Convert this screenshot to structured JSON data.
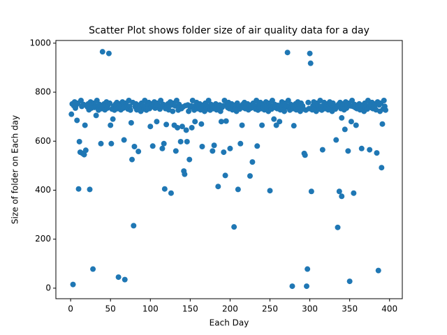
{
  "chart_data": {
    "type": "scatter",
    "title": "Scatter Plot shows folder size of air quality data for a day",
    "x_label": "Each Day",
    "y_label": "Size of folder on Each day",
    "color": "#1f77b4",
    "xlim": [
      -18.5,
      416
    ],
    "ylim": [
      -43,
      1011
    ],
    "xticks": [
      0,
      50,
      100,
      150,
      200,
      250,
      300,
      350,
      400
    ],
    "yticks": [
      0,
      200,
      400,
      600,
      800,
      1000
    ],
    "x": [
      1,
      2,
      3,
      4,
      5,
      6,
      7,
      8,
      9,
      10,
      11,
      12,
      13,
      14,
      15,
      16,
      17,
      18,
      19,
      20,
      21,
      22,
      23,
      24,
      25,
      26,
      27,
      28,
      29,
      30,
      31,
      32,
      33,
      34,
      35,
      36,
      37,
      38,
      39,
      40,
      41,
      42,
      43,
      44,
      45,
      46,
      47,
      48,
      49,
      50,
      51,
      52,
      53,
      54,
      55,
      56,
      57,
      58,
      59,
      60,
      61,
      62,
      63,
      64,
      65,
      66,
      67,
      68,
      69,
      70,
      71,
      72,
      73,
      74,
      75,
      76,
      77,
      78,
      79,
      80,
      81,
      82,
      83,
      84,
      85,
      86,
      87,
      88,
      89,
      90,
      91,
      92,
      93,
      94,
      95,
      96,
      97,
      98,
      99,
      100,
      101,
      102,
      103,
      104,
      105,
      106,
      107,
      108,
      109,
      110,
      111,
      112,
      113,
      114,
      115,
      116,
      117,
      118,
      119,
      120,
      121,
      122,
      123,
      124,
      125,
      126,
      127,
      128,
      129,
      130,
      131,
      132,
      133,
      134,
      135,
      136,
      137,
      138,
      139,
      140,
      141,
      142,
      143,
      144,
      145,
      146,
      147,
      148,
      149,
      150,
      151,
      152,
      153,
      154,
      155,
      156,
      157,
      158,
      159,
      160,
      161,
      162,
      163,
      164,
      165,
      166,
      167,
      168,
      169,
      170,
      171,
      172,
      173,
      174,
      175,
      176,
      177,
      178,
      179,
      180,
      181,
      182,
      183,
      184,
      185,
      186,
      187,
      188,
      189,
      190,
      191,
      192,
      193,
      194,
      195,
      196,
      197,
      198,
      199,
      200,
      201,
      202,
      203,
      204,
      205,
      206,
      207,
      208,
      209,
      210,
      211,
      212,
      213,
      214,
      215,
      216,
      217,
      218,
      219,
      220,
      221,
      222,
      223,
      224,
      225,
      226,
      227,
      228,
      229,
      230,
      231,
      232,
      233,
      234,
      235,
      236,
      237,
      238,
      239,
      240,
      241,
      242,
      243,
      244,
      245,
      246,
      247,
      248,
      249,
      250,
      251,
      252,
      253,
      254,
      255,
      256,
      257,
      258,
      259,
      260,
      261,
      262,
      263,
      264,
      265,
      266,
      267,
      268,
      269,
      270,
      271,
      272,
      273,
      274,
      275,
      276,
      277,
      278,
      279,
      280,
      281,
      282,
      283,
      284,
      285,
      286,
      287,
      288,
      289,
      290,
      291,
      292,
      293,
      294,
      295,
      296,
      297,
      298,
      299,
      300,
      301,
      302,
      303,
      304,
      305,
      306,
      307,
      308,
      309,
      310,
      311,
      312,
      313,
      314,
      315,
      316,
      317,
      318,
      319,
      320,
      321,
      322,
      323,
      324,
      325,
      326,
      327,
      328,
      329,
      330,
      331,
      332,
      333,
      334,
      335,
      336,
      337,
      338,
      339,
      340,
      341,
      342,
      343,
      344,
      345,
      346,
      347,
      348,
      349,
      350,
      351,
      352,
      353,
      354,
      355,
      356,
      357,
      358,
      359,
      360,
      361,
      362,
      363,
      364,
      365,
      366,
      367,
      368,
      369,
      370,
      371,
      372,
      373,
      374,
      375,
      376,
      377,
      378,
      379,
      380,
      381,
      382,
      383,
      384,
      385,
      386,
      387,
      388,
      389,
      390,
      391,
      392,
      393,
      394,
      395,
      340
    ],
    "values": [
      710,
      752,
      15,
      745,
      760,
      735,
      748,
      685,
      755,
      405,
      598,
      555,
      766,
      742,
      550,
      750,
      545,
      665,
      563,
      746,
      740,
      752,
      728,
      403,
      760,
      735,
      748,
      78,
      755,
      738,
      744,
      705,
      766,
      742,
      727,
      750,
      737,
      590,
      733,
      965,
      740,
      752,
      728,
      745,
      760,
      735,
      748,
      958,
      755,
      665,
      590,
      731,
      690,
      742,
      727,
      750,
      737,
      758,
      733,
      45,
      740,
      752,
      728,
      745,
      760,
      735,
      605,
      35,
      755,
      738,
      744,
      731,
      766,
      742,
      727,
      675,
      525,
      758,
      255,
      578,
      740,
      752,
      728,
      745,
      558,
      735,
      748,
      722,
      755,
      738,
      744,
      731,
      766,
      742,
      727,
      750,
      737,
      758,
      733,
      660,
      740,
      752,
      580,
      745,
      760,
      735,
      748,
      680,
      755,
      738,
      744,
      731,
      766,
      742,
      570,
      750,
      590,
      405,
      733,
      668,
      740,
      752,
      728,
      745,
      760,
      388,
      748,
      722,
      755,
      665,
      744,
      560,
      766,
      655,
      727,
      750,
      737,
      598,
      733,
      660,
      740,
      478,
      465,
      745,
      645,
      598,
      748,
      722,
      525,
      738,
      744,
      655,
      766,
      742,
      727,
      680,
      737,
      758,
      733,
      746,
      740,
      752,
      728,
      670,
      578,
      735,
      748,
      722,
      755,
      738,
      744,
      731,
      766,
      742,
      727,
      750,
      737,
      560,
      733,
      583,
      740,
      752,
      728,
      745,
      415,
      735,
      748,
      722,
      680,
      738,
      744,
      555,
      766,
      460,
      682,
      750,
      737,
      758,
      733,
      570,
      740,
      752,
      728,
      745,
      250,
      735,
      748,
      722,
      755,
      403,
      744,
      731,
      590,
      742,
      665,
      750,
      737,
      758,
      733,
      746,
      740,
      752,
      728,
      745,
      458,
      735,
      748,
      515,
      755,
      738,
      744,
      731,
      766,
      580,
      727,
      750,
      737,
      758,
      733,
      665,
      740,
      752,
      728,
      745,
      760,
      735,
      748,
      722,
      755,
      398,
      744,
      731,
      766,
      742,
      690,
      750,
      737,
      665,
      733,
      746,
      740,
      680,
      728,
      745,
      760,
      735,
      748,
      722,
      755,
      738,
      744,
      962,
      766,
      742,
      727,
      750,
      737,
      8,
      733,
      663,
      740,
      752,
      728,
      745,
      760,
      735,
      748,
      722,
      755,
      738,
      744,
      731,
      550,
      543,
      727,
      8,
      78,
      758,
      733,
      958,
      918,
      395,
      728,
      745,
      760,
      735,
      748,
      722,
      755,
      738,
      744,
      731,
      766,
      742,
      727,
      565,
      737,
      758,
      733,
      746,
      740,
      752,
      728,
      745,
      760,
      735,
      748,
      722,
      755,
      738,
      744,
      731,
      605,
      742,
      248,
      750,
      395,
      758,
      733,
      695,
      740,
      752,
      728,
      648,
      760,
      735,
      748,
      560,
      755,
      28,
      744,
      680,
      766,
      742,
      388,
      750,
      737,
      665,
      733,
      746,
      740,
      752,
      728,
      745,
      570,
      735,
      748,
      722,
      755,
      738,
      744,
      731,
      766,
      742,
      565,
      750,
      737,
      758,
      733,
      746,
      740,
      752,
      728,
      552,
      760,
      72,
      748,
      722,
      755,
      492,
      670,
      731,
      766,
      742,
      727,
      375
    ]
  }
}
